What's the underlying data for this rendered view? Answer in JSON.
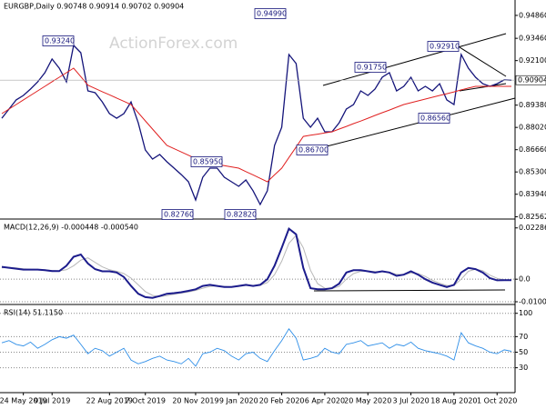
{
  "chart_data": [
    {
      "type": "line",
      "title": "EURGBP,Daily  0.90748 0.90914 0.90702 0.90904",
      "watermark": "ActionForex.com",
      "categories": [
        null,
        null,
        null,
        "24 May 2019",
        null,
        null,
        null,
        "9 Jul 2019",
        null,
        null,
        null,
        null,
        null,
        null,
        null,
        "22 Aug 2019",
        null,
        null,
        null,
        null,
        "7 Oct 2019",
        null,
        null,
        null,
        null,
        null,
        null,
        "20 Nov 2019",
        null,
        null,
        null,
        null,
        null,
        "9 Jan 2020",
        null,
        null,
        null,
        null,
        null,
        "20 Feb 2020",
        null,
        null,
        null,
        null,
        null,
        "6 Apr 2020",
        null,
        null,
        null,
        null,
        null,
        "20 May 2020",
        null,
        null,
        null,
        null,
        null,
        "3 Jul 2020",
        null,
        null,
        null,
        null,
        null,
        "18 Aug 2020",
        null,
        null,
        null,
        null,
        null,
        "1 Oct 2020",
        null,
        null
      ],
      "series": [
        {
          "color": "#14147a",
          "values": [
            0.8858,
            0.8914,
            0.897,
            0.8997,
            0.9036,
            0.908,
            0.9136,
            0.922,
            0.9164,
            0.908,
            0.9303,
            0.9258,
            0.9025,
            0.9014,
            0.8958,
            0.8886,
            0.8858,
            0.8886,
            0.8958,
            0.883,
            0.8664,
            0.8609,
            0.8637,
            0.8592,
            0.8553,
            0.8514,
            0.847,
            0.8359,
            0.8498,
            0.8553,
            0.8553,
            0.8498,
            0.847,
            0.8442,
            0.8481,
            0.8415,
            0.8331,
            0.8415,
            0.8692,
            0.8803,
            0.9247,
            0.9192,
            0.8858,
            0.8803,
            0.8858,
            0.8775,
            0.8775,
            0.883,
            0.8914,
            0.8942,
            0.9025,
            0.8997,
            0.9036,
            0.9108,
            0.9136,
            0.9025,
            0.9053,
            0.9108,
            0.9025,
            0.9053,
            0.9025,
            0.9069,
            0.897,
            0.8942,
            0.9247,
            0.9164,
            0.9108,
            0.9069,
            0.9053,
            0.9069,
            0.9092,
            0.909
          ]
        },
        {
          "color": "#e02020",
          "values": [
            0.8886,
            0.8914,
            0.8942,
            0.897,
            0.8997,
            0.9025,
            0.9053,
            0.9081,
            0.9108,
            0.9136,
            0.9164,
            0.9112,
            0.906,
            0.904,
            0.902,
            0.9001,
            0.8981,
            0.8962,
            0.8942,
            0.8892,
            0.8842,
            0.8792,
            0.8742,
            0.8692,
            0.8672,
            0.8652,
            0.8632,
            0.8612,
            0.8592,
            0.8584,
            0.8576,
            0.8569,
            0.8561,
            0.8553,
            0.8532,
            0.8512,
            0.8491,
            0.847,
            0.8512,
            0.8553,
            0.8618,
            0.8682,
            0.8747,
            0.8754,
            0.8761,
            0.8768,
            0.8775,
            0.8792,
            0.8808,
            0.8825,
            0.8841,
            0.8858,
            0.8875,
            0.8892,
            0.8908,
            0.8925,
            0.8942,
            0.8953,
            0.8964,
            0.8975,
            0.8986,
            0.8997,
            0.9008,
            0.9019,
            0.9031,
            0.9042,
            0.9053,
            0.9053,
            0.9053,
            0.9053,
            0.9053,
            0.9053
          ]
        }
      ],
      "ylim": [
        0.8248,
        0.958
      ],
      "yticks": [
        {
          "value": 0.9486,
          "label": "0.94860"
        },
        {
          "value": 0.9346,
          "label": "0.93460"
        },
        {
          "value": 0.921,
          "label": "0.92100"
        },
        {
          "value": 0.8938,
          "label": "0.89380"
        },
        {
          "value": 0.8802,
          "label": "0.88020"
        },
        {
          "value": 0.8666,
          "label": "0.86660"
        },
        {
          "value": 0.853,
          "label": "0.85300"
        },
        {
          "value": 0.8394,
          "label": "0.83940"
        },
        {
          "value": 0.82562,
          "label": "0.82562"
        }
      ],
      "current_price": 0.90904,
      "annotations": [
        "0.93240",
        "0.94990",
        "0.92910",
        "0.91750",
        "0.86560",
        "0.86700",
        "0.85950",
        "0.82760",
        "0.82820"
      ]
    },
    {
      "type": "macd",
      "title": "MACD(12,26,9) -0.000448 -0.000540",
      "series": [
        {
          "color": "#1c1c8c",
          "values": [
            0.0055,
            0.0051,
            0.0047,
            0.0043,
            0.0043,
            0.0043,
            0.004,
            0.0036,
            0.0036,
            0.006,
            0.01,
            0.011,
            0.007,
            0.0045,
            0.0035,
            0.0035,
            0.003,
            0.001,
            -0.003,
            -0.0065,
            -0.008,
            -0.0083,
            -0.0075,
            -0.0065,
            -0.0062,
            -0.0058,
            -0.0052,
            -0.0045,
            -0.003,
            -0.0025,
            -0.003,
            -0.0035,
            -0.0035,
            -0.003,
            -0.0025,
            -0.003,
            -0.0025,
            0,
            0.006,
            0.014,
            0.0225,
            0.02,
            0.005,
            -0.004,
            -0.0045,
            -0.0045,
            -0.004,
            -0.002,
            0.003,
            0.004,
            0.004,
            0.0035,
            0.003,
            0.0035,
            0.003,
            0.0015,
            0.002,
            0.0035,
            0.002,
            0,
            -0.0015,
            -0.0025,
            -0.0035,
            -0.0025,
            0.003,
            0.005,
            0.0045,
            0.003,
            0.0005,
            -0.0005,
            -0.0004,
            -0.000448
          ]
        },
        {
          "color": "#b8b8b8",
          "values": [
            0.005,
            0.0052,
            0.005,
            0.0046,
            0.0044,
            0.0043,
            0.0042,
            0.0039,
            0.0037,
            0.0042,
            0.006,
            0.0085,
            0.0095,
            0.0075,
            0.0055,
            0.0042,
            0.0035,
            0.0025,
            0.0005,
            -0.0025,
            -0.0055,
            -0.0072,
            -0.0078,
            -0.0073,
            -0.0067,
            -0.0062,
            -0.0057,
            -0.005,
            -0.004,
            -0.0032,
            -0.003,
            -0.0032,
            -0.0034,
            -0.0032,
            -0.0028,
            -0.0028,
            -0.0027,
            -0.0015,
            0.002,
            0.008,
            0.016,
            0.0195,
            0.014,
            0.004,
            -0.002,
            -0.004,
            -0.0042,
            -0.0032,
            0,
            0.0025,
            0.0035,
            0.0037,
            0.0034,
            0.0033,
            0.0031,
            0.0022,
            0.002,
            0.0028,
            0.0025,
            0.0012,
            -0.0005,
            -0.0018,
            -0.0028,
            -0.0028,
            0,
            0.0035,
            0.0045,
            0.0038,
            0.0018,
            0.0004,
            -0.0003,
            -0.00054
          ]
        }
      ],
      "ylim": [
        -0.010052,
        0.026
      ],
      "yticks": [
        0.022862,
        {
          "value": 0,
          "label": "0.0"
        },
        -0.010052
      ]
    },
    {
      "type": "rsi",
      "title": "RSI(14) 51.1150",
      "series": [
        {
          "color": "#2f8fe8",
          "values": [
            62,
            65,
            60,
            58,
            63,
            55,
            60,
            66,
            70,
            68,
            72,
            60,
            48,
            55,
            52,
            45,
            50,
            55,
            40,
            35,
            38,
            42,
            45,
            40,
            38,
            35,
            42,
            32,
            48,
            50,
            55,
            52,
            45,
            40,
            48,
            50,
            42,
            38,
            52,
            65,
            80,
            68,
            40,
            42,
            45,
            55,
            50,
            48,
            60,
            62,
            65,
            58,
            60,
            62,
            55,
            60,
            58,
            63,
            55,
            52,
            50,
            48,
            45,
            40,
            75,
            62,
            58,
            55,
            50,
            48,
            53,
            51.115
          ]
        }
      ],
      "ylim": [
        -2,
        109
      ],
      "yticks": [
        100,
        70,
        50,
        30
      ]
    }
  ]
}
